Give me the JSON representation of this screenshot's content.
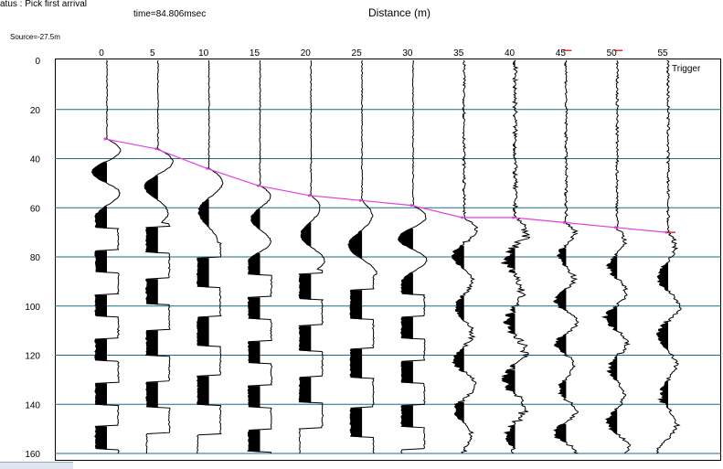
{
  "status_text": "atus : Pick first arrival",
  "time_text": "time=84.806msec",
  "x_title": "Distance (m)",
  "source_text": "Source=-27.5m",
  "trigger_label": "Trigger",
  "colors": {
    "grid": "#1f6b8a",
    "pick": "#e040e0",
    "trace": "#000000",
    "marker": "#e03030"
  },
  "chart_data": {
    "type": "line",
    "title": "",
    "xlabel": "Distance (m)",
    "ylabel": "",
    "x_ticks": [
      "0",
      "5",
      "10",
      "15",
      "20",
      "25",
      "30",
      "35",
      "40",
      "45",
      "50",
      "55"
    ],
    "y_ticks": [
      "0",
      "20",
      "40",
      "60",
      "80",
      "100",
      "120",
      "140",
      "160"
    ],
    "xlim": [
      -5,
      57
    ],
    "ylim": [
      0,
      160
    ],
    "grid": "horizontal",
    "series": [
      {
        "name": "",
        "x": [
          0,
          5,
          10,
          15,
          20,
          25,
          30,
          35,
          40,
          45,
          50,
          55
        ],
        "y": [
          32,
          36,
          44,
          51,
          55,
          57,
          59,
          64,
          64,
          66,
          68,
          70
        ]
      }
    ]
  }
}
